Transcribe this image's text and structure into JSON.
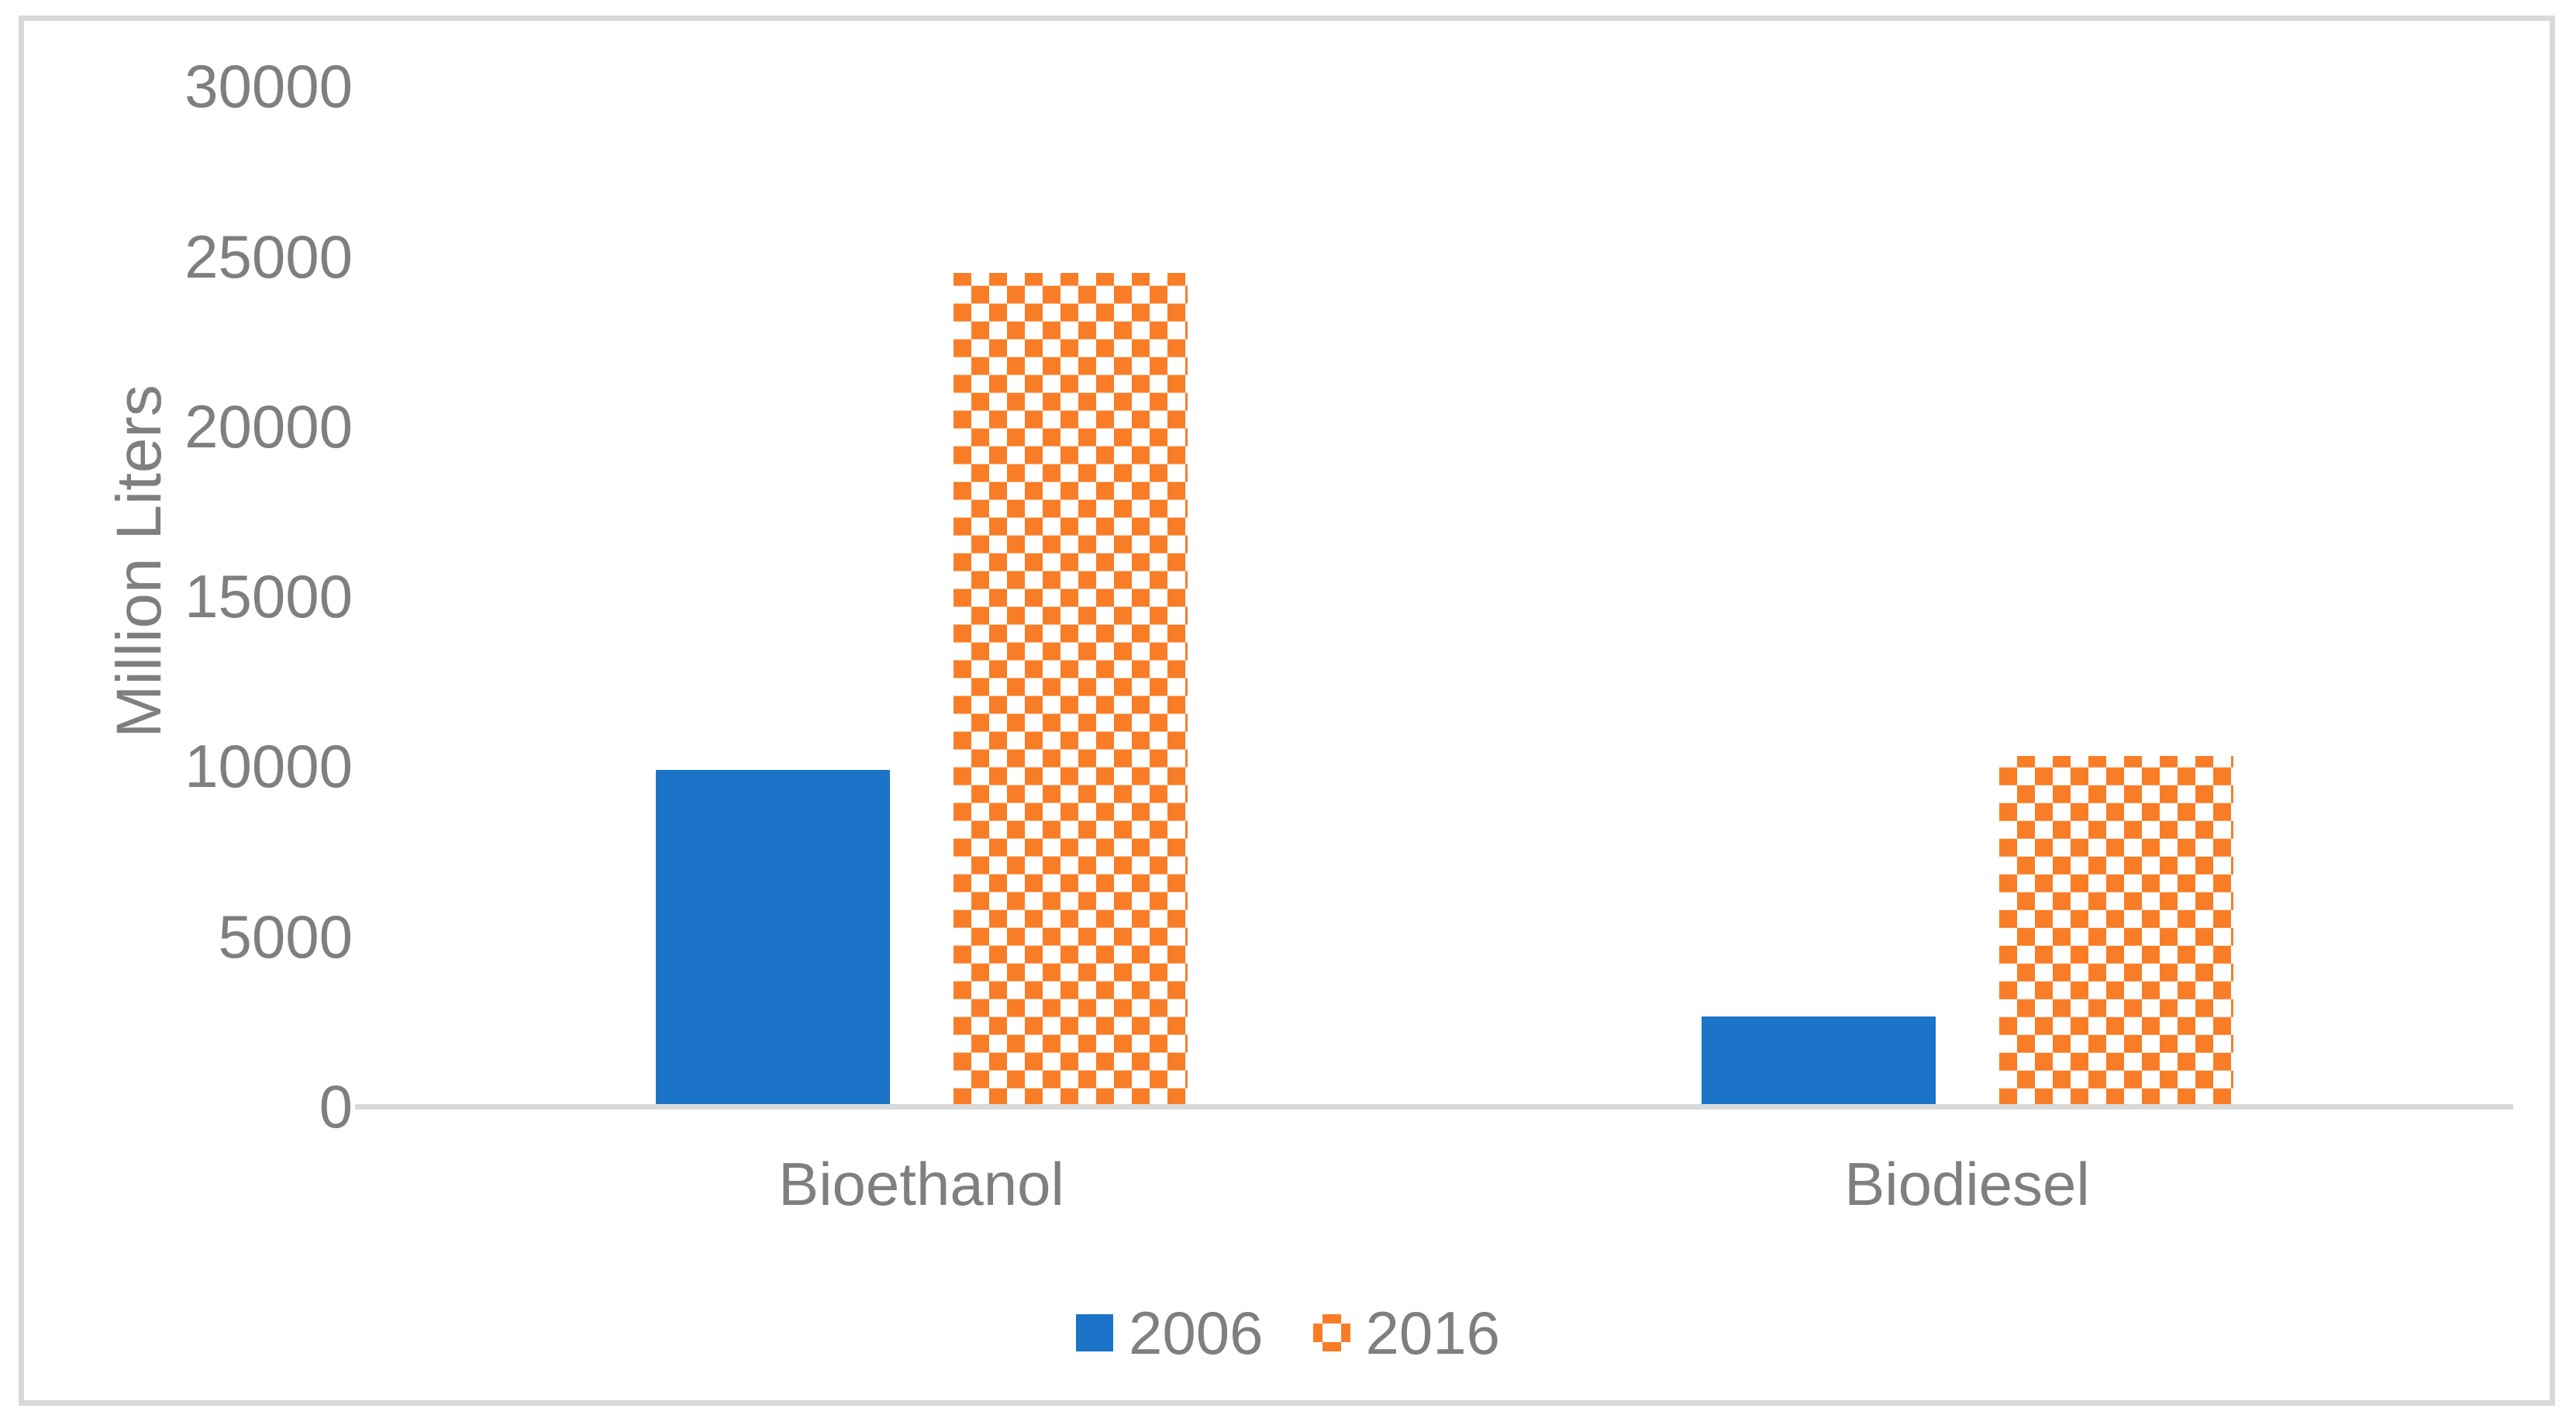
{
  "chart_data": {
    "type": "bar",
    "title": "",
    "categories": [
      "Bioethanol",
      "Biodiesel"
    ],
    "series": [
      {
        "name": "2006",
        "values": [
          9900,
          2650
        ],
        "color": "#1B74C8",
        "pattern": "solid"
      },
      {
        "name": "2016",
        "values": [
          24500,
          10300
        ],
        "color": "#F97D26",
        "pattern": "checker"
      }
    ],
    "xlabel": "",
    "ylabel": "Million Liters",
    "ylim": [
      0,
      30000
    ],
    "yticks": [
      0,
      5000,
      10000,
      15000,
      20000,
      25000,
      30000
    ],
    "grid": false,
    "legend_position": "bottom-center",
    "colors": {
      "tick_text": "#7F7F7F",
      "axis_line": "#D9D9D9",
      "frame_border": "#D9D9D9",
      "background": "#FFFFFF"
    }
  }
}
